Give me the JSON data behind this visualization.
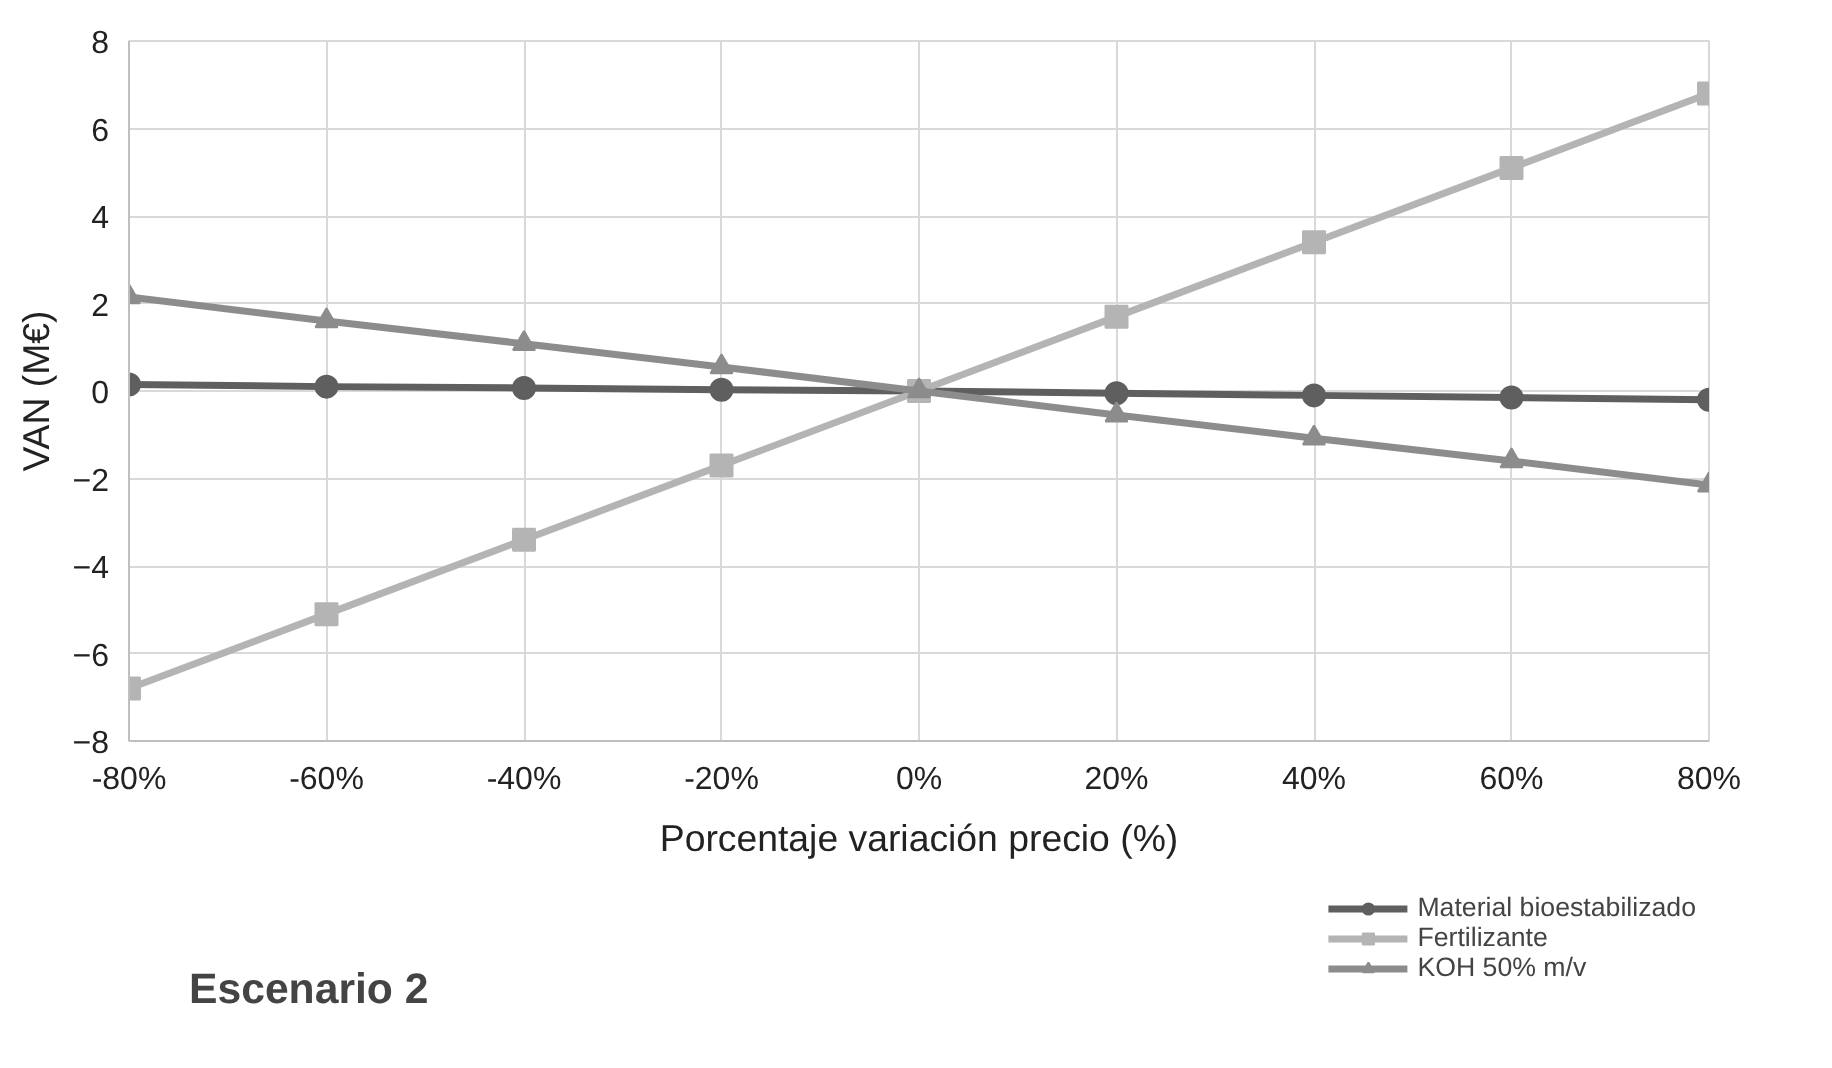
{
  "chart_data": {
    "type": "line",
    "title": "Escenario 2",
    "xlabel": "Porcentaje variación precio (%)",
    "ylabel": "VAN (M€)",
    "x": [
      -80,
      -60,
      -40,
      -20,
      0,
      20,
      40,
      60,
      80
    ],
    "series": [
      {
        "name": "Material bioestabilizado",
        "color": "#5f5f5f",
        "marker": "circle",
        "values": [
          0.15,
          0.1,
          0.07,
          0.03,
          0,
          -0.05,
          -0.1,
          -0.15,
          -0.2
        ]
      },
      {
        "name": "Fertilizante",
        "color": "#b4b4b4",
        "marker": "square",
        "values": [
          -6.8,
          -5.1,
          -3.4,
          -1.7,
          0,
          1.7,
          3.4,
          5.1,
          6.8
        ]
      },
      {
        "name": "KOH 50% m/v",
        "color": "#8c8c8c",
        "marker": "triangle",
        "values": [
          2.15,
          1.6,
          1.08,
          0.55,
          0,
          -0.55,
          -1.08,
          -1.6,
          -2.15
        ]
      }
    ],
    "xlim": [
      -80,
      80
    ],
    "ylim": [
      -8,
      8
    ],
    "xticks": [
      {
        "value": -80,
        "label": "-80%"
      },
      {
        "value": -60,
        "label": "-60%"
      },
      {
        "value": -40,
        "label": "-40%"
      },
      {
        "value": -20,
        "label": "-20%"
      },
      {
        "value": 0,
        "label": "0%"
      },
      {
        "value": 20,
        "label": "20%"
      },
      {
        "value": 40,
        "label": "40%"
      },
      {
        "value": 60,
        "label": "60%"
      },
      {
        "value": 80,
        "label": "80%"
      }
    ],
    "yticks": [
      -8,
      -6,
      -4,
      -2,
      0,
      2,
      4,
      6,
      8
    ],
    "grid": true,
    "legend": "bottom right",
    "line_style": "solid"
  }
}
